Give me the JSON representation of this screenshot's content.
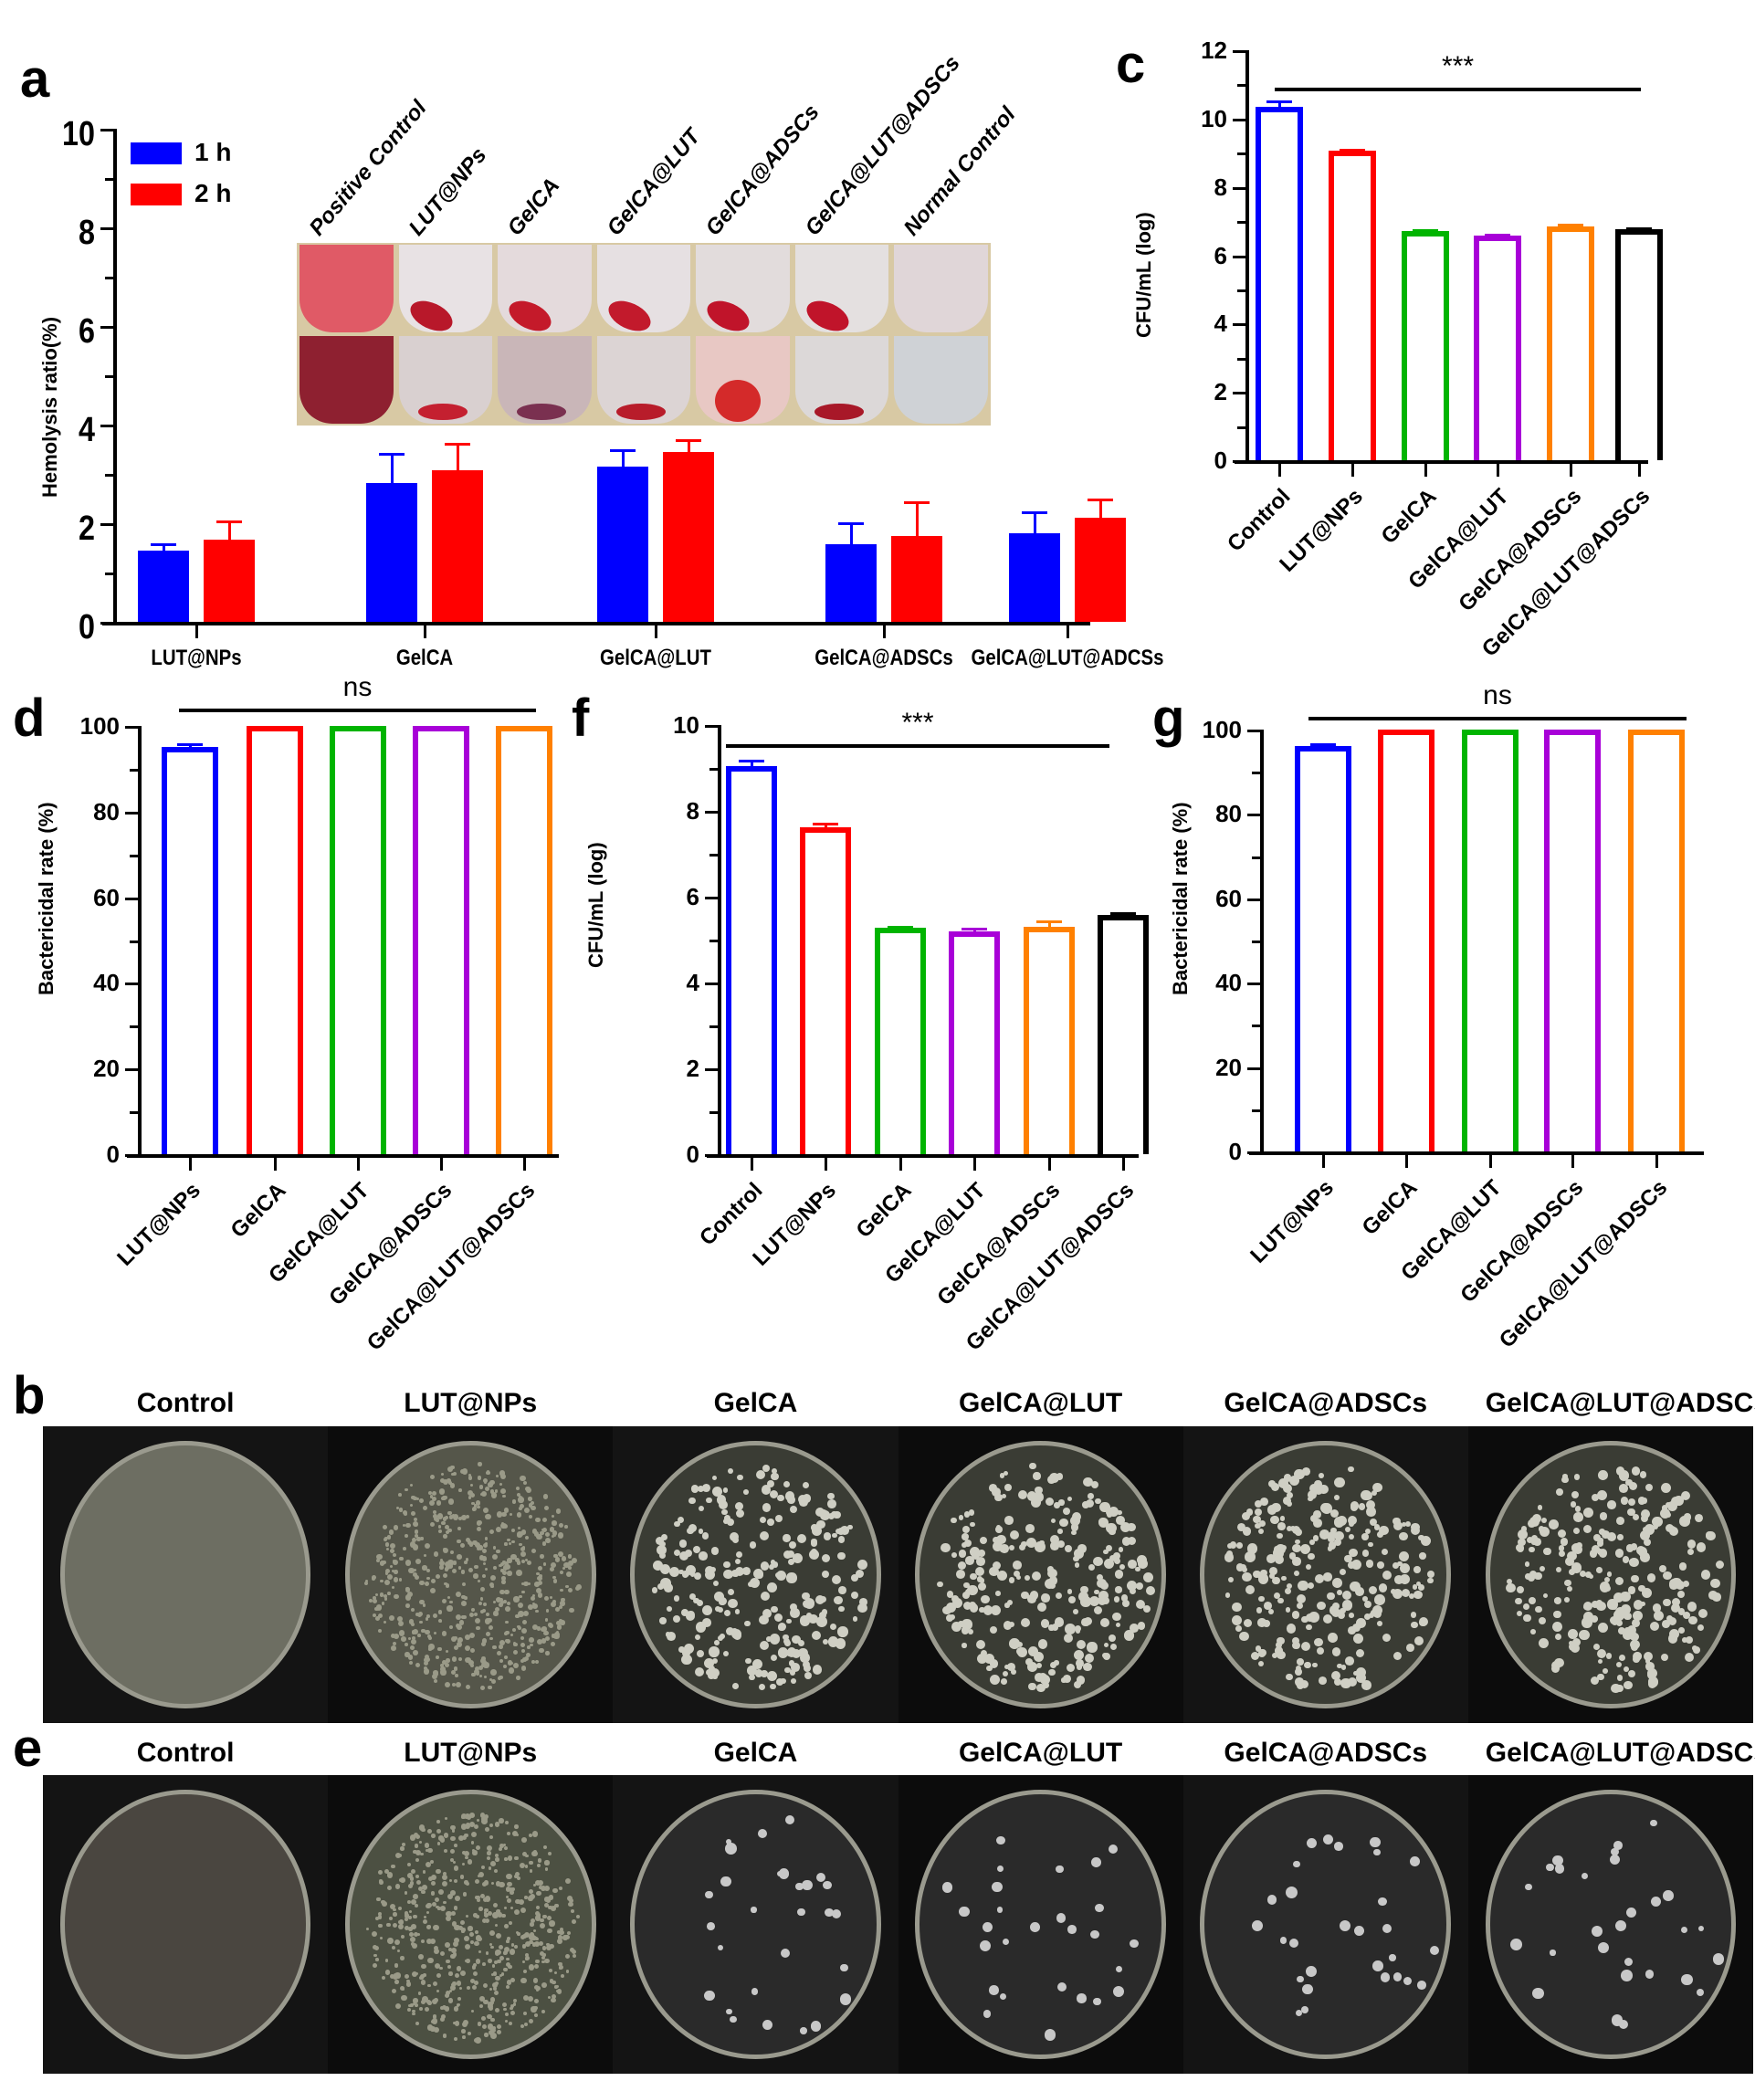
{
  "figure": {
    "panels": {
      "a": {
        "letter": "a"
      },
      "b": {
        "letter": "b"
      },
      "c": {
        "letter": "c"
      },
      "d": {
        "letter": "d"
      },
      "e": {
        "letter": "e"
      },
      "f": {
        "letter": "f"
      },
      "g": {
        "letter": "g"
      }
    }
  },
  "colors": {
    "blue": "#0000ff",
    "red": "#ff0000",
    "green": "#00b400",
    "purple": "#a800d8",
    "orange": "#ff8000",
    "black": "#000000"
  },
  "chart_data": [
    {
      "id": "a",
      "type": "bar",
      "title": "",
      "ylabel": "Hemolysis ratio(%)",
      "xlabel": "",
      "ylim": [
        0,
        10
      ],
      "yticks": [
        "0",
        "2",
        "4",
        "6",
        "8",
        "10"
      ],
      "categories": [
        "LUT@NPs",
        "GelCA",
        "GelCA@LUT",
        "GelCA@ADSCs",
        "GelCA@LUT@ADCSs"
      ],
      "series": [
        {
          "name": "1 h",
          "color": "#0000ff",
          "values": [
            1.45,
            2.82,
            3.14,
            1.58,
            1.8
          ],
          "error_upper": [
            1.6,
            3.43,
            3.5,
            2.02,
            2.24
          ]
        },
        {
          "name": "2 h",
          "color": "#ff0000",
          "values": [
            1.66,
            3.07,
            3.44,
            1.74,
            2.12
          ],
          "error_upper": [
            2.05,
            3.63,
            3.7,
            2.45,
            2.5
          ]
        }
      ],
      "legend": [
        "1 h",
        "2 h"
      ],
      "legend_position": "upper-left",
      "inset_photo_labels": [
        "Positive Control",
        "LUT@NPs",
        "GelCA",
        "GelCA@LUT",
        "GelCA@ADSCs",
        "GelCA@LUT@ADSCs",
        "Normal Control"
      ]
    },
    {
      "id": "c",
      "type": "bar",
      "ylabel": "CFU/mL (log)",
      "ylim": [
        0,
        12
      ],
      "yticks": [
        "0",
        "2",
        "4",
        "6",
        "8",
        "10",
        "12"
      ],
      "categories": [
        "Control",
        "LUT@NPs",
        "GelCA",
        "GelCA@LUT",
        "GelCA@ADSCs",
        "GelCA@LUT@ADSCs"
      ],
      "values": [
        10.35,
        9.05,
        6.7,
        6.58,
        6.85,
        6.75
      ],
      "error_upper": [
        10.52,
        9.12,
        6.76,
        6.63,
        6.93,
        6.82
      ],
      "bar_colors": [
        "#0000ff",
        "#ff0000",
        "#00b400",
        "#a800d8",
        "#ff8000",
        "#000000"
      ],
      "significance": {
        "label": "***",
        "y": 10.9
      }
    },
    {
      "id": "d",
      "type": "bar",
      "ylabel": "Bactericidal rate (%)",
      "ylim": [
        0,
        100
      ],
      "yticks": [
        "0",
        "20",
        "40",
        "60",
        "80",
        "100"
      ],
      "categories": [
        "LUT@NPs",
        "GelCA",
        "GelCA@LUT",
        "GelCA@ADSCs",
        "GelCA@LUT@ADSCs"
      ],
      "values": [
        95.0,
        99.9,
        99.9,
        99.9,
        99.9
      ],
      "error_upper": [
        96.0,
        99.9,
        99.9,
        99.9,
        99.9
      ],
      "bar_colors": [
        "#0000ff",
        "#ff0000",
        "#00b400",
        "#a800d8",
        "#ff8000"
      ],
      "significance": {
        "label": "ns",
        "y": 104
      }
    },
    {
      "id": "f",
      "type": "bar",
      "ylabel": "CFU/mL (log)",
      "ylim": [
        0,
        10
      ],
      "yticks": [
        "0",
        "2",
        "4",
        "6",
        "8",
        "10"
      ],
      "categories": [
        "Control",
        "LUT@NPs",
        "GelCA",
        "GelCA@LUT",
        "GelCA@ADSCs",
        "GelCA@LUT@ADSCs"
      ],
      "values": [
        9.05,
        7.62,
        5.27,
        5.2,
        5.3,
        5.57
      ],
      "error_upper": [
        9.2,
        7.72,
        5.32,
        5.27,
        5.45,
        5.63
      ],
      "bar_colors": [
        "#0000ff",
        "#ff0000",
        "#00b400",
        "#a800d8",
        "#ff8000",
        "#000000"
      ],
      "significance": {
        "label": "***",
        "y": 9.55
      }
    },
    {
      "id": "g",
      "type": "bar",
      "ylabel": "Bactericidal rate (%)",
      "ylim": [
        0,
        100
      ],
      "yticks": [
        "0",
        "20",
        "40",
        "60",
        "80",
        "100"
      ],
      "categories": [
        "LUT@NPs",
        "GelCA",
        "GelCA@LUT",
        "GelCA@ADSCs",
        "GelCA@LUT@ADSCs"
      ],
      "values": [
        96.0,
        99.9,
        99.9,
        99.9,
        99.9
      ],
      "error_upper": [
        96.7,
        99.9,
        99.9,
        99.9,
        99.9
      ],
      "bar_colors": [
        "#0000ff",
        "#ff0000",
        "#00b400",
        "#a800d8",
        "#ff8000"
      ],
      "significance": {
        "label": "ns",
        "y": 103
      }
    }
  ],
  "plates": {
    "b": {
      "labels": [
        "Control",
        "LUT@NPs",
        "GelCA",
        "GelCA@LUT",
        "GelCA@ADSCs",
        "GelCA@LUT@ADSCs"
      ],
      "colony_density": [
        "lawn",
        "dense",
        "many",
        "many",
        "many",
        "many"
      ]
    },
    "e": {
      "labels": [
        "Control",
        "LUT@NPs",
        "GelCA",
        "GelCA@LUT",
        "GelCA@ADSCs",
        "GelCA@LUT@ADSCs"
      ],
      "colony_density": [
        "lawn",
        "dense",
        "few",
        "few",
        "few",
        "few"
      ]
    }
  }
}
